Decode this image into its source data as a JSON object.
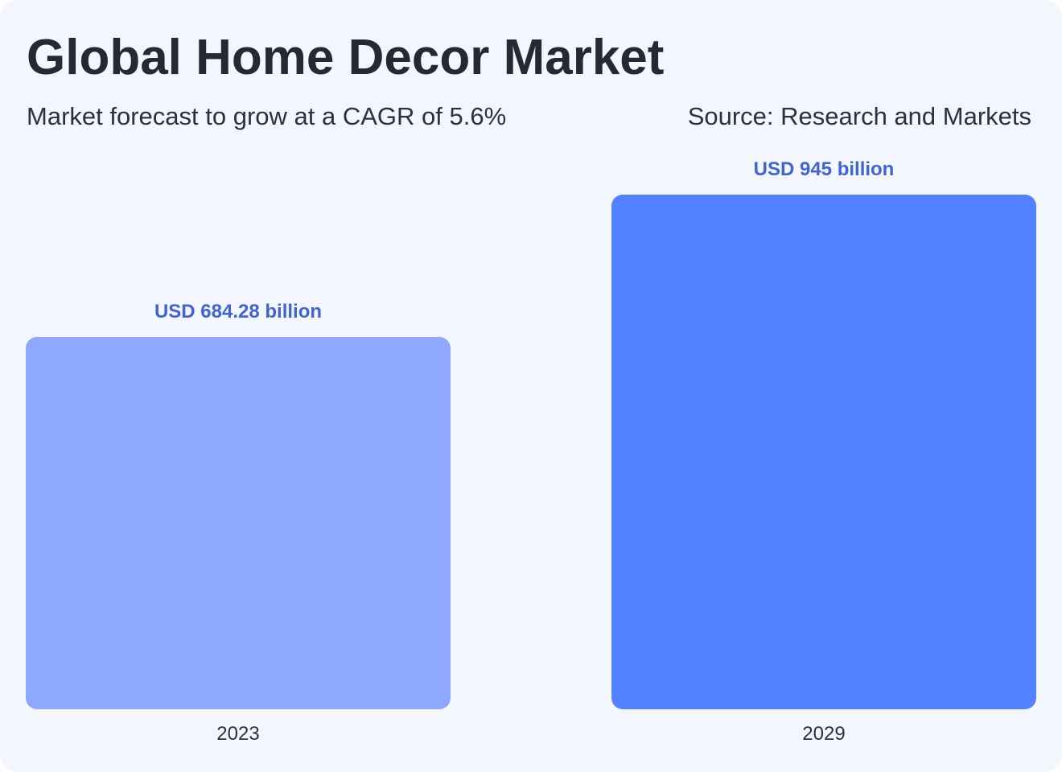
{
  "header": {
    "title": "Global Home Decor Market",
    "subtitle": "Market forecast to grow at a CAGR of 5.6%",
    "source": "Source: Research and Markets"
  },
  "colors": {
    "background": "#f4f6fd",
    "label_text": "#4063d6",
    "bars": [
      "#8ea8ff",
      "#5481ff"
    ]
  },
  "chart_data": {
    "type": "bar",
    "title": "Global Home Decor Market",
    "subtitle": "Market forecast to grow at a CAGR of 5.6%",
    "categories": [
      "2023",
      "2029"
    ],
    "values": [
      684.28,
      945
    ],
    "data_labels": [
      "USD 684.28 billion",
      "USD 945 billion"
    ],
    "unit": "USD billion",
    "xlabel": "",
    "ylabel": "",
    "ylim": [
      0,
      945
    ],
    "grid": false,
    "legend": "none"
  }
}
